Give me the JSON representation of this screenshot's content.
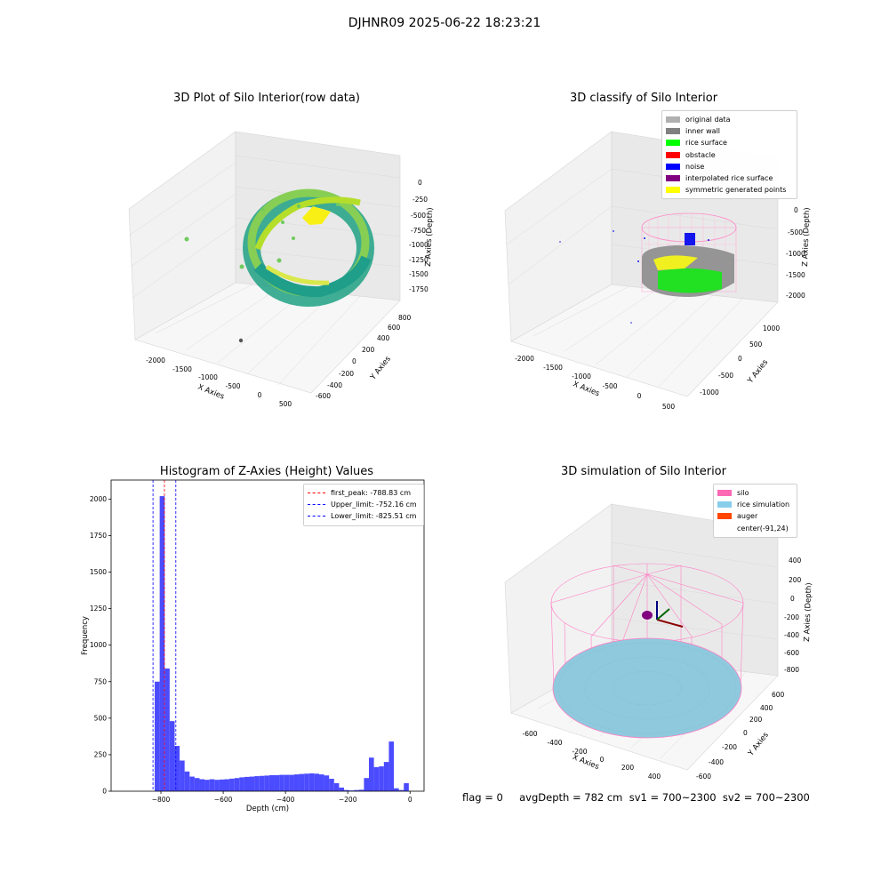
{
  "suptitle": "DJHNR09 2025-06-22 18:23:21",
  "panels": {
    "raw": {
      "title": "3D Plot of Silo Interior(row data)",
      "xlabel": "X Axies",
      "ylabel": "Y Axies",
      "zlabel": "Z Axies (Depth)",
      "xticks": [
        "-2000",
        "-1500",
        "-1000",
        "-500",
        "0",
        "500"
      ],
      "yticks": [
        "-600",
        "-400",
        "-200",
        "0",
        "200",
        "400",
        "600",
        "800"
      ],
      "zticks": [
        "0",
        "-250",
        "-500",
        "-750",
        "-1000",
        "-1250",
        "-1500",
        "-1750"
      ]
    },
    "classify": {
      "title": "3D classify of Silo Interior",
      "xlabel": "X Axies",
      "ylabel": "Y Axies",
      "zlabel": "Z Axies (Depth)",
      "xticks": [
        "-2000",
        "-1500",
        "-1000",
        "-500",
        "0",
        "500"
      ],
      "yticks": [
        "-1000",
        "-500",
        "0",
        "500",
        "1000"
      ],
      "zticks": [
        "0",
        "-500",
        "-1000",
        "-1500",
        "-2000"
      ],
      "legend": [
        {
          "label": "original data",
          "color": "#b0b0b0"
        },
        {
          "label": "inner wall",
          "color": "#808080"
        },
        {
          "label": "rice surface",
          "color": "#00ff00"
        },
        {
          "label": "obstacle",
          "color": "#ff0000"
        },
        {
          "label": "noise",
          "color": "#0000ff"
        },
        {
          "label": "interpolated rice surface",
          "color": "#800080"
        },
        {
          "label": "symmetric generated points",
          "color": "#ffff00"
        }
      ]
    },
    "hist": {
      "title": "Histogram of Z-Axies (Height) Values",
      "xlabel": "Depth (cm)",
      "ylabel": "Frequency",
      "legend": [
        {
          "label": "first_peak: -788.83 cm",
          "color": "#ff0000"
        },
        {
          "label": "Upper_limit: -752.16 cm",
          "color": "#0000ff"
        },
        {
          "label": "Lower_limit: -825.51 cm",
          "color": "#0000ff"
        }
      ]
    },
    "sim": {
      "title": "3D simulation of Silo Interior",
      "xlabel": "X Axies",
      "ylabel": "Y Axies",
      "zlabel": "Z Axies (Depth)",
      "xticks": [
        "-600",
        "-400",
        "-200",
        "0",
        "200",
        "400"
      ],
      "yticks": [
        "-600",
        "-400",
        "-200",
        "0",
        "200",
        "400",
        "600"
      ],
      "zticks": [
        "400",
        "200",
        "0",
        "-200",
        "-400",
        "-600",
        "-800"
      ],
      "legend": [
        {
          "label": "silo",
          "color": "#ff69b4"
        },
        {
          "label": "rice simulation",
          "color": "#87ceeb"
        },
        {
          "label": "auger",
          "color": "#ff4500"
        },
        {
          "label": "center(-91,24)",
          "color": ""
        }
      ]
    }
  },
  "info_text": "flag = 0     avgDepth = 782 cm  sv1 = 700~2300  sv2 = 700~2300",
  "chart_data": [
    {
      "type": "bar",
      "title": "Histogram of Z-Axies (Height) Values",
      "xlabel": "Depth (cm)",
      "ylabel": "Frequency",
      "xlim": [
        -960,
        45
      ],
      "ylim": [
        0,
        2130
      ],
      "xticks": [
        -800,
        -600,
        -400,
        -200,
        0
      ],
      "yticks": [
        0,
        250,
        500,
        750,
        1000,
        1250,
        1500,
        1750,
        2000
      ],
      "bin_width": 16,
      "bins": [
        {
          "x": -812,
          "y": 750
        },
        {
          "x": -796,
          "y": 2020
        },
        {
          "x": -780,
          "y": 840
        },
        {
          "x": -764,
          "y": 480
        },
        {
          "x": -748,
          "y": 310
        },
        {
          "x": -732,
          "y": 210
        },
        {
          "x": -716,
          "y": 135
        },
        {
          "x": -700,
          "y": 100
        },
        {
          "x": -684,
          "y": 90
        },
        {
          "x": -668,
          "y": 82
        },
        {
          "x": -652,
          "y": 78
        },
        {
          "x": -636,
          "y": 82
        },
        {
          "x": -620,
          "y": 78
        },
        {
          "x": -604,
          "y": 80
        },
        {
          "x": -588,
          "y": 82
        },
        {
          "x": -572,
          "y": 86
        },
        {
          "x": -556,
          "y": 90
        },
        {
          "x": -540,
          "y": 95
        },
        {
          "x": -524,
          "y": 98
        },
        {
          "x": -508,
          "y": 100
        },
        {
          "x": -492,
          "y": 103
        },
        {
          "x": -476,
          "y": 105
        },
        {
          "x": -460,
          "y": 107
        },
        {
          "x": -444,
          "y": 110
        },
        {
          "x": -428,
          "y": 110
        },
        {
          "x": -412,
          "y": 112
        },
        {
          "x": -396,
          "y": 112
        },
        {
          "x": -380,
          "y": 112
        },
        {
          "x": -364,
          "y": 115
        },
        {
          "x": -348,
          "y": 118
        },
        {
          "x": -332,
          "y": 120
        },
        {
          "x": -316,
          "y": 122
        },
        {
          "x": -300,
          "y": 120
        },
        {
          "x": -284,
          "y": 115
        },
        {
          "x": -268,
          "y": 108
        },
        {
          "x": -252,
          "y": 85
        },
        {
          "x": -236,
          "y": 55
        },
        {
          "x": -220,
          "y": 25
        },
        {
          "x": -204,
          "y": 8
        },
        {
          "x": -188,
          "y": 5
        },
        {
          "x": -172,
          "y": 8
        },
        {
          "x": -156,
          "y": 10
        },
        {
          "x": -140,
          "y": 90
        },
        {
          "x": -124,
          "y": 230
        },
        {
          "x": -108,
          "y": 165
        },
        {
          "x": -92,
          "y": 170
        },
        {
          "x": -76,
          "y": 200
        },
        {
          "x": -60,
          "y": 340
        },
        {
          "x": -44,
          "y": 20
        },
        {
          "x": -28,
          "y": 8
        },
        {
          "x": -12,
          "y": 55
        }
      ],
      "vlines": [
        {
          "label": "first_peak: -788.83 cm",
          "x": -788.83,
          "color": "#ff0000"
        },
        {
          "label": "Upper_limit: -752.16 cm",
          "x": -752.16,
          "color": "#0000ff"
        },
        {
          "label": "Lower_limit: -825.51 cm",
          "x": -825.51,
          "color": "#0000ff"
        }
      ],
      "bar_color": "#4b4bff",
      "legend_position": "top-right",
      "grid": false
    }
  ]
}
